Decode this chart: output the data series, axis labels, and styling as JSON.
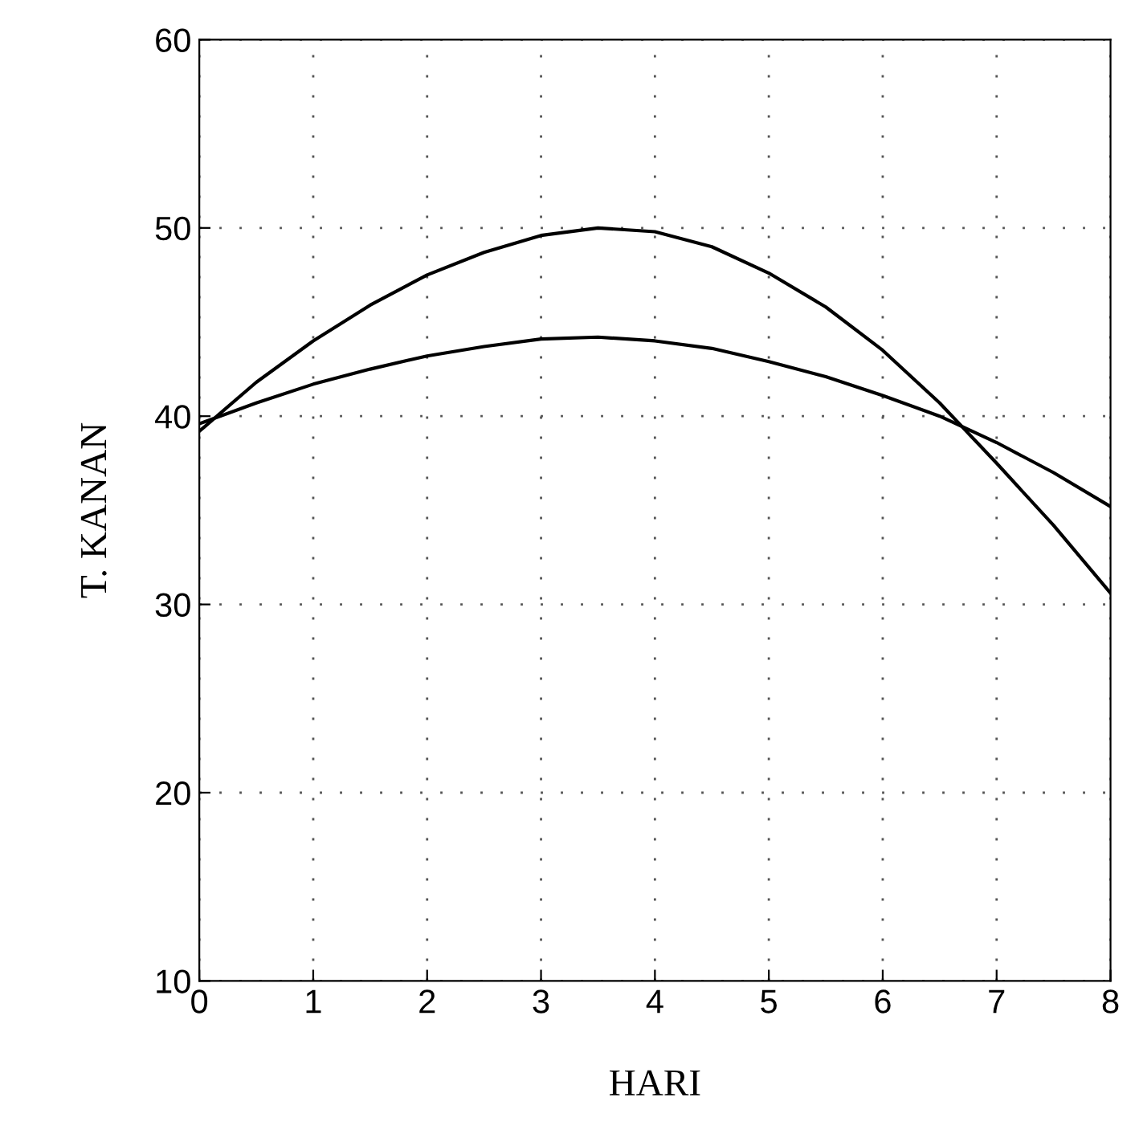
{
  "chart_data": {
    "type": "line",
    "xlabel": "HARI",
    "ylabel": "T. KANAN",
    "xlim": [
      0,
      8
    ],
    "ylim": [
      10,
      60
    ],
    "xticks": [
      0,
      1,
      2,
      3,
      4,
      5,
      6,
      7,
      8
    ],
    "yticks": [
      10,
      20,
      30,
      40,
      50,
      60
    ],
    "grid": true,
    "marker": "none",
    "line_style": "solid",
    "legend": false,
    "x": [
      0,
      0.5,
      1,
      1.5,
      2,
      2.5,
      3,
      3.5,
      4,
      4.5,
      5,
      5.5,
      6,
      6.5,
      7,
      7.5,
      8
    ],
    "series": [
      {
        "color": "#000000",
        "values": [
          39.2,
          41.8,
          44.0,
          45.9,
          47.5,
          48.7,
          49.6,
          50.0,
          49.8,
          49.0,
          47.6,
          45.8,
          43.5,
          40.7,
          37.5,
          34.2,
          30.6
        ]
      },
      {
        "color": "#000000",
        "values": [
          39.6,
          40.7,
          41.7,
          42.5,
          43.2,
          43.7,
          44.1,
          44.2,
          44.0,
          43.6,
          42.9,
          42.1,
          41.1,
          40.0,
          38.6,
          37.0,
          35.2
        ]
      }
    ]
  }
}
